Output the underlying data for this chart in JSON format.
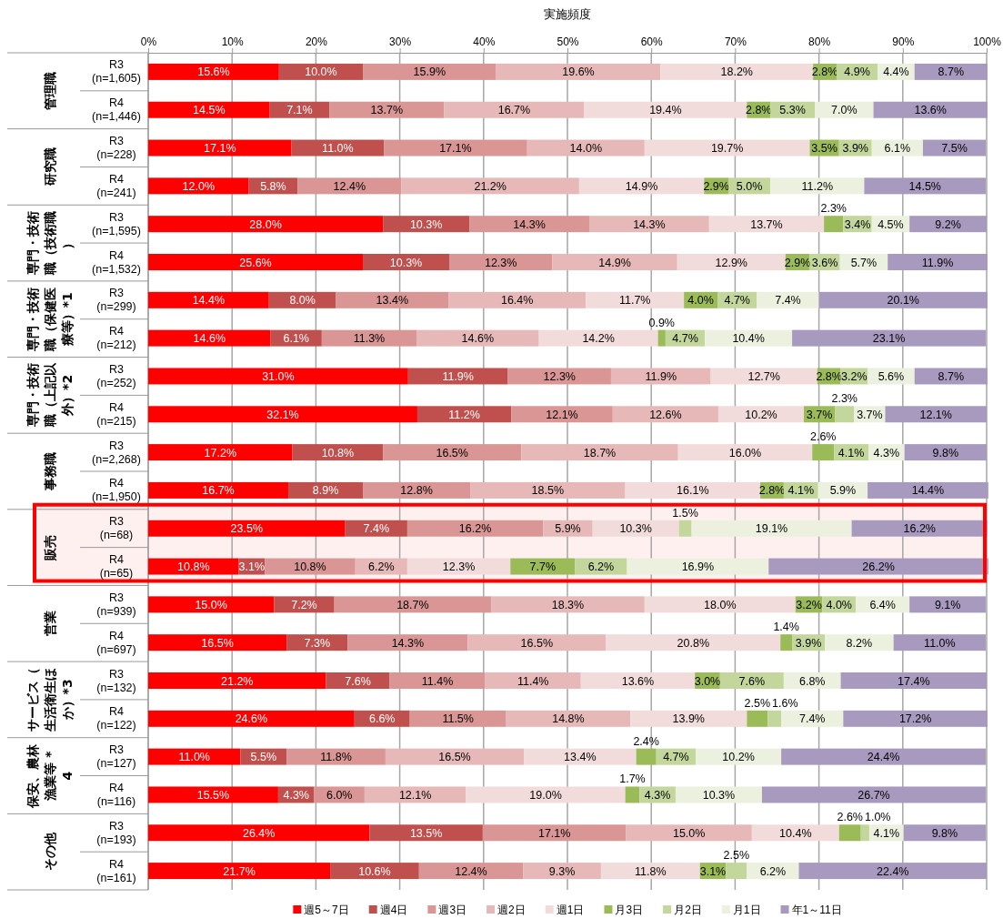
{
  "chart_data": {
    "type": "bar",
    "orientation": "horizontal",
    "stacked": true,
    "xlabel": "実施頻度",
    "categories": [
      "R3\n(n=1,605)",
      "R4\n(n=1,446)",
      "R3\n(n=228)",
      "R4\n(n=241)",
      "R3\n(n=1,595)",
      "R4\n(n=1,532)",
      "R3\n(n=299)",
      "R4\n(n=212)",
      "R3\n(n=252)",
      "R4\n(n=215)",
      "R3\n(n=2,268)",
      "R4\n(n=1,950)",
      "R3\n(n=68)",
      "R4\n(n=65)",
      "R3\n(n=939)",
      "R4\n(n=697)",
      "R3\n(n=132)",
      "R4\n(n=122)",
      "R3\n(n=127)",
      "R4\n(n=116)",
      "R3\n(n=193)",
      "R4\n(n=161)"
    ],
    "annotations": [
      "管理職",
      "研究職",
      "専門・技術職（技術職）",
      "専門・技術職（保健医療等）*1",
      "専門・技術職（上記以外）*2",
      "事務職",
      "販売",
      "営業",
      "サービス（生活衛生ほか）*3",
      "保安、農林漁業等 *4",
      "その他"
    ],
    "xlim": [
      0,
      100
    ],
    "xticks": [
      {
        "value": 0,
        "label": "0%"
      },
      {
        "value": 10,
        "label": "10%"
      },
      {
        "value": 20,
        "label": "20%"
      },
      {
        "value": 30,
        "label": "30%"
      },
      {
        "value": 40,
        "label": "40%"
      },
      {
        "value": 50,
        "label": "50%"
      },
      {
        "value": 60,
        "label": "60%"
      },
      {
        "value": 70,
        "label": "70%"
      },
      {
        "value": 80,
        "label": "80%"
      },
      {
        "value": 90,
        "label": "90%"
      },
      {
        "value": 100,
        "label": "100%"
      }
    ],
    "grid": "x",
    "legend": "bottom",
    "bands": [
      {
        "axis": "y",
        "from": "R3\n(n=68)",
        "to": "R4\n(n=65)",
        "color": "#ff0000"
      }
    ],
    "series": [
      {
        "name": "週5～7日",
        "color": "#ff0000",
        "values": [
          15.6,
          14.5,
          17.1,
          12.0,
          28.0,
          25.6,
          14.4,
          14.6,
          31.0,
          32.1,
          17.2,
          16.7,
          23.5,
          10.8,
          15.0,
          16.5,
          21.2,
          24.6,
          11.0,
          15.5,
          26.4,
          21.7
        ],
        "value_labels": [
          "15.6%",
          "14.5%",
          "17.1%",
          "12.0%",
          "28.0%",
          "25.6%",
          "14.4%",
          "14.6%",
          "31.0%",
          "32.1%",
          "17.2%",
          "16.7%",
          "23.5%",
          "10.8%",
          "15.0%",
          "16.5%",
          "21.2%",
          "24.6%",
          "11.0%",
          "15.5%",
          "26.4%",
          "21.7%"
        ]
      },
      {
        "name": "週4日",
        "color": "#c0504d",
        "values": [
          10.0,
          7.1,
          11.0,
          5.8,
          10.3,
          10.3,
          8.0,
          6.1,
          11.9,
          11.2,
          10.8,
          8.9,
          7.4,
          3.1,
          7.2,
          7.3,
          7.6,
          6.6,
          5.5,
          4.3,
          13.5,
          10.6
        ],
        "value_labels": [
          "10.0%",
          "7.1%",
          "11.0%",
          "5.8%",
          "10.3%",
          "10.3%",
          "8.0%",
          "6.1%",
          "11.9%",
          "11.2%",
          "10.8%",
          "8.9%",
          "7.4%",
          "3.1%",
          "7.2%",
          "7.3%",
          "7.6%",
          "6.6%",
          "5.5%",
          "4.3%",
          "13.5%",
          "10.6%"
        ]
      },
      {
        "name": "週3日",
        "color": "#d99694",
        "values": [
          15.9,
          13.7,
          17.1,
          12.4,
          14.3,
          12.3,
          13.4,
          11.3,
          12.3,
          12.1,
          16.5,
          12.8,
          16.2,
          10.8,
          18.7,
          14.3,
          11.4,
          11.5,
          11.8,
          6.0,
          17.1,
          12.4
        ],
        "value_labels": [
          "15.9%",
          "13.7%",
          "17.1%",
          "12.4%",
          "14.3%",
          "12.3%",
          "13.4%",
          "11.3%",
          "12.3%",
          "12.1%",
          "16.5%",
          "12.8%",
          "16.2%",
          "10.8%",
          "18.7%",
          "14.3%",
          "11.4%",
          "11.5%",
          "11.8%",
          "6.0%",
          "17.1%",
          "12.4%"
        ]
      },
      {
        "name": "週2日",
        "color": "#e6b9b8",
        "values": [
          19.6,
          16.7,
          14.0,
          21.2,
          14.3,
          14.9,
          16.4,
          14.6,
          11.9,
          12.6,
          18.7,
          18.5,
          5.9,
          6.2,
          18.3,
          16.5,
          11.4,
          14.8,
          16.5,
          12.1,
          15.0,
          9.3
        ],
        "value_labels": [
          "19.6%",
          "16.7%",
          "14.0%",
          "21.2%",
          "14.3%",
          "14.9%",
          "16.4%",
          "14.6%",
          "11.9%",
          "12.6%",
          "18.7%",
          "18.5%",
          "5.9%",
          "6.2%",
          "18.3%",
          "16.5%",
          "11.4%",
          "14.8%",
          "16.5%",
          "12.1%",
          "15.0%",
          "9.3%"
        ]
      },
      {
        "name": "週1日",
        "color": "#f2dcdb",
        "values": [
          18.2,
          19.4,
          19.7,
          14.9,
          13.7,
          12.9,
          11.7,
          14.2,
          12.7,
          10.2,
          16.0,
          16.1,
          10.3,
          12.3,
          18.0,
          20.8,
          13.6,
          13.9,
          13.4,
          19.0,
          10.4,
          11.8
        ],
        "value_labels": [
          "18.2%",
          "19.4%",
          "19.7%",
          "14.9%",
          "13.7%",
          "12.9%",
          "11.7%",
          "14.2%",
          "12.7%",
          "10.2%",
          "16.0%",
          "16.1%",
          "10.3%",
          "12.3%",
          "18.0%",
          "20.8%",
          "13.6%",
          "13.9%",
          "13.4%",
          "19.0%",
          "10.4%",
          "11.8%"
        ]
      },
      {
        "name": "月3日",
        "color": "#9bbb59",
        "values": [
          2.8,
          2.8,
          3.5,
          2.9,
          2.3,
          2.9,
          4.0,
          0.9,
          2.8,
          3.7,
          2.6,
          2.8,
          null,
          7.7,
          3.2,
          1.4,
          3.0,
          2.5,
          2.4,
          1.7,
          2.6,
          3.1
        ],
        "value_labels": [
          "2.8%",
          "2.8%",
          "3.5%",
          "2.9%",
          "2.3%",
          "2.9%",
          "4.0%",
          "0.9%",
          "2.8%",
          "3.7%",
          "2.6%",
          "2.8%",
          null,
          "7.7%",
          "3.2%",
          "1.4%",
          "3.0%",
          "2.5%",
          "2.4%",
          "1.7%",
          "2.6%",
          "3.1%"
        ]
      },
      {
        "name": "月2日",
        "color": "#c3d69b",
        "values": [
          4.9,
          5.3,
          3.9,
          5.0,
          3.4,
          3.6,
          4.7,
          4.7,
          3.2,
          2.3,
          4.1,
          4.1,
          1.5,
          6.2,
          4.0,
          3.9,
          7.6,
          1.6,
          4.7,
          4.3,
          1.0,
          2.5
        ],
        "value_labels": [
          "4.9%",
          "5.3%",
          "3.9%",
          "5.0%",
          "3.4%",
          "3.6%",
          "4.7%",
          "4.7%",
          "3.2%",
          "2.3%",
          "4.1%",
          "4.1%",
          "1.5%",
          "6.2%",
          "4.0%",
          "3.9%",
          "7.6%",
          "1.6%",
          "4.7%",
          "4.3%",
          "1.0%",
          "2.5%"
        ]
      },
      {
        "name": "月1日",
        "color": "#ebf1de",
        "values": [
          4.4,
          7.0,
          6.1,
          11.2,
          4.5,
          5.7,
          7.4,
          10.4,
          5.6,
          3.7,
          4.3,
          5.9,
          19.1,
          16.9,
          6.4,
          8.2,
          6.8,
          7.4,
          10.2,
          10.3,
          4.1,
          6.2
        ],
        "value_labels": [
          "4.4%",
          "7.0%",
          "6.1%",
          "11.2%",
          "4.5%",
          "5.7%",
          "7.4%",
          "10.4%",
          "5.6%",
          "3.7%",
          "4.3%",
          "5.9%",
          "19.1%",
          "16.9%",
          "6.4%",
          "8.2%",
          "6.8%",
          "7.4%",
          "10.2%",
          "10.3%",
          "4.1%",
          "6.2%"
        ]
      },
      {
        "name": "年1～11日",
        "color": "#a899bf",
        "values": [
          8.7,
          13.6,
          7.5,
          14.5,
          9.2,
          11.9,
          20.1,
          23.1,
          8.7,
          12.1,
          9.8,
          14.4,
          16.2,
          26.2,
          9.1,
          11.0,
          17.4,
          17.2,
          24.4,
          26.7,
          9.8,
          22.4
        ],
        "value_labels": [
          "8.7%",
          "13.6%",
          "7.5%",
          "14.5%",
          "9.2%",
          "11.9%",
          "20.1%",
          "23.1%",
          "8.7%",
          "12.1%",
          "9.8%",
          "14.4%",
          "16.2%",
          "26.2%",
          "9.1%",
          "11.0%",
          "17.4%",
          "17.2%",
          "24.4%",
          "26.7%",
          "9.8%",
          "22.4%"
        ]
      }
    ]
  }
}
